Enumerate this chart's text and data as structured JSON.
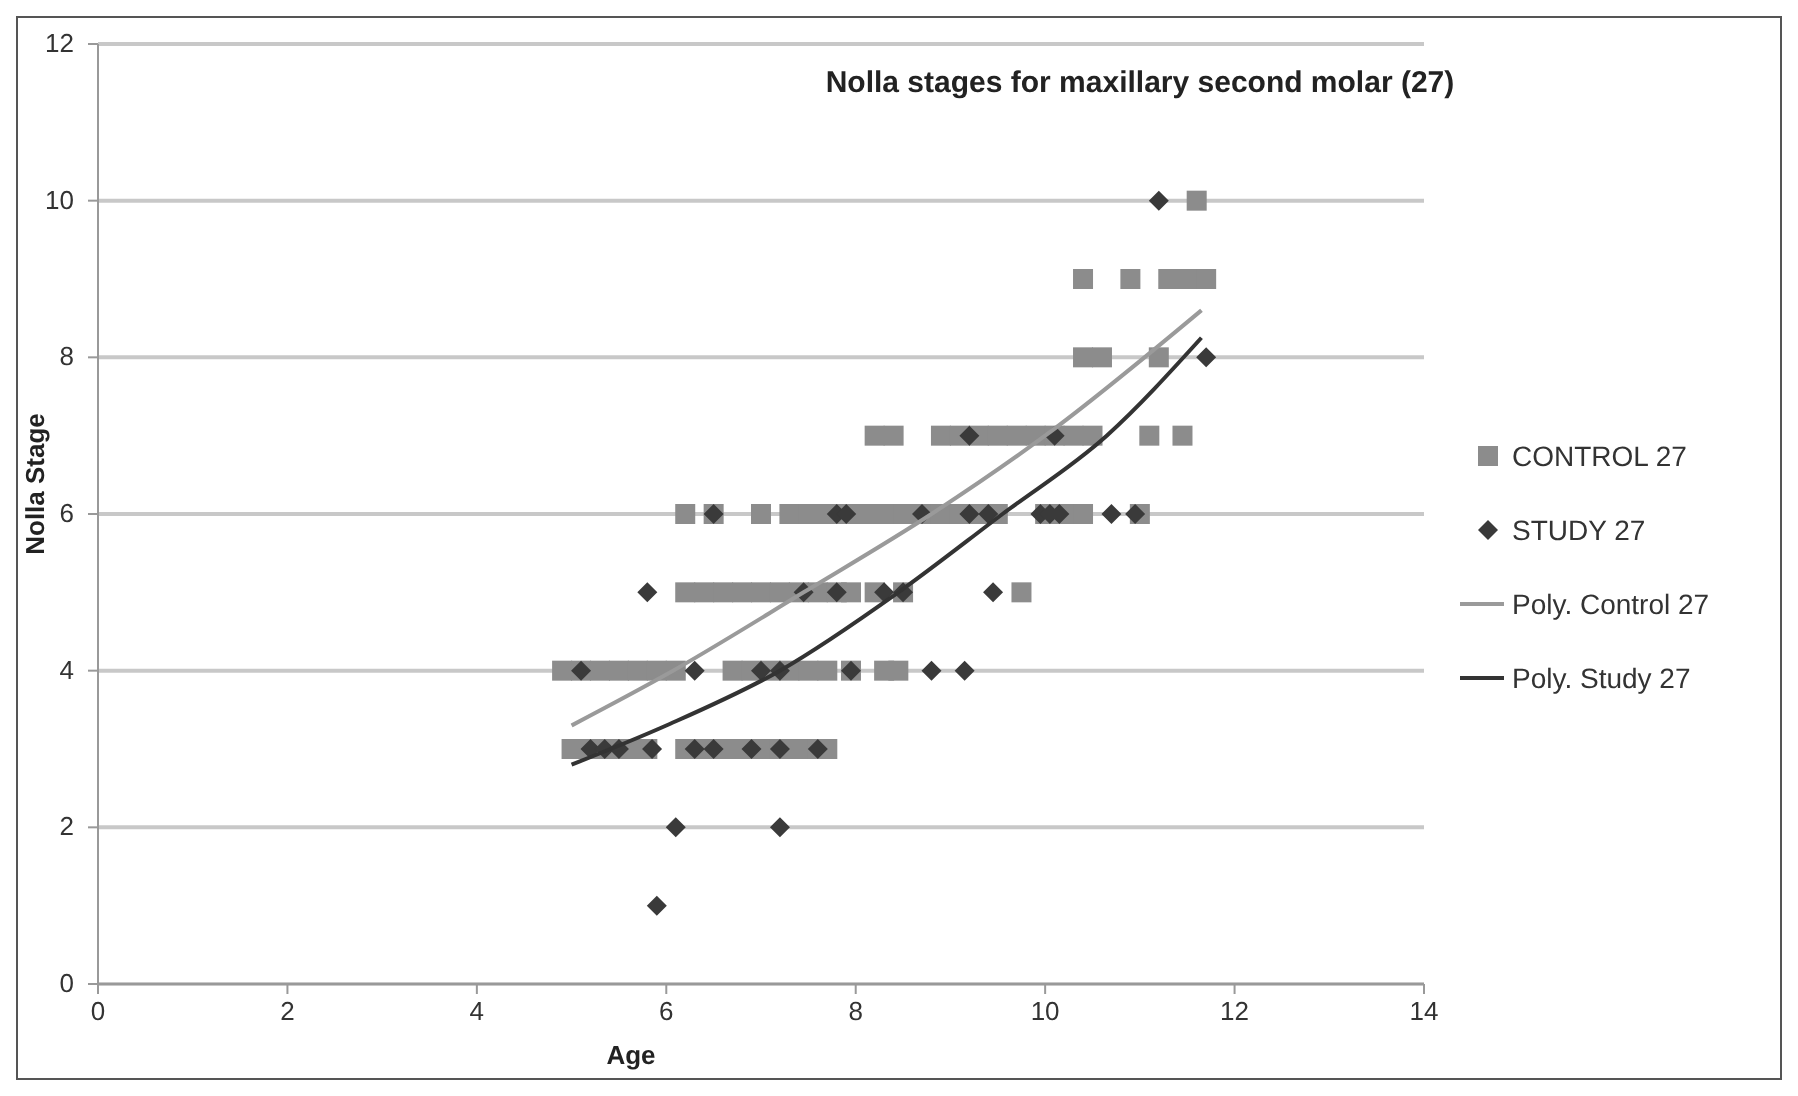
{
  "chart_data": {
    "type": "scatter",
    "title": "Nolla stages for maxillary second molar (27)",
    "xlabel": "Age",
    "ylabel": "Nolla Stage",
    "xlim": [
      0,
      14
    ],
    "xticks": [
      0,
      2,
      4,
      6,
      8,
      10,
      12,
      14
    ],
    "ylim": [
      0,
      12
    ],
    "yticks": [
      0,
      2,
      4,
      6,
      8,
      10,
      12
    ],
    "grid": "y",
    "legend": "right",
    "series": [
      {
        "name": "CONTROL 27",
        "color": "#8c8c8c",
        "marker": "square",
        "x": [
          5.0,
          5.2,
          5.4,
          5.6,
          5.8,
          6.2,
          6.4,
          6.6,
          6.8,
          7.0,
          7.2,
          7.4,
          7.6,
          7.7,
          4.9,
          5.1,
          5.3,
          5.5,
          5.7,
          5.9,
          6.1,
          6.7,
          6.9,
          7.1,
          7.3,
          7.5,
          7.7,
          7.95,
          8.3,
          8.45,
          6.2,
          6.4,
          6.6,
          6.8,
          7.0,
          7.2,
          7.4,
          7.6,
          7.8,
          7.95,
          8.2,
          8.5,
          9.75,
          6.2,
          6.5,
          7.0,
          7.3,
          7.5,
          7.7,
          7.9,
          8.1,
          8.3,
          8.5,
          8.7,
          8.9,
          9.1,
          9.3,
          9.5,
          10.0,
          10.2,
          10.4,
          11.0,
          8.2,
          8.4,
          8.9,
          9.1,
          9.3,
          9.5,
          9.7,
          9.9,
          10.1,
          10.3,
          10.5,
          11.1,
          11.45,
          10.4,
          10.6,
          11.2,
          10.4,
          10.9,
          11.3,
          11.5,
          11.7,
          11.6
        ],
        "values": [
          3,
          3,
          3,
          3,
          3,
          3,
          3,
          3,
          3,
          3,
          3,
          3,
          3,
          3,
          4,
          4,
          4,
          4,
          4,
          4,
          4,
          4,
          4,
          4,
          4,
          4,
          4,
          4,
          4,
          4,
          5,
          5,
          5,
          5,
          5,
          5,
          5,
          5,
          5,
          5,
          5,
          5,
          5,
          6,
          6,
          6,
          6,
          6,
          6,
          6,
          6,
          6,
          6,
          6,
          6,
          6,
          6,
          6,
          6,
          6,
          6,
          6,
          7,
          7,
          7,
          7,
          7,
          7,
          7,
          7,
          7,
          7,
          7,
          7,
          7,
          8,
          8,
          8,
          9,
          9,
          9,
          9,
          9,
          10
        ]
      },
      {
        "name": "STUDY 27",
        "color": "#3a3a3a",
        "marker": "diamond",
        "x": [
          5.9,
          6.1,
          7.2,
          5.2,
          5.35,
          5.5,
          5.85,
          6.3,
          6.5,
          6.9,
          7.2,
          7.6,
          5.1,
          6.3,
          7.0,
          7.2,
          7.95,
          8.8,
          9.15,
          5.8,
          7.45,
          7.8,
          8.3,
          8.5,
          9.45,
          6.5,
          7.8,
          7.9,
          8.7,
          9.2,
          9.4,
          9.95,
          10.05,
          10.15,
          10.7,
          10.95,
          9.2,
          10.1,
          11.7,
          11.2
        ],
        "values": [
          1,
          2,
          2,
          3,
          3,
          3,
          3,
          3,
          3,
          3,
          3,
          3,
          4,
          4,
          4,
          4,
          4,
          4,
          4,
          5,
          5,
          5,
          5,
          5,
          5,
          6,
          6,
          6,
          6,
          6,
          6,
          6,
          6,
          6,
          6,
          6,
          7,
          7,
          8,
          10
        ]
      },
      {
        "name": "Poly. Control 27",
        "type": "line",
        "color": "#9a9a9a",
        "marker": "none",
        "x": [
          5.0,
          6.0,
          7.45,
          8.8,
          10.0,
          11.65
        ],
        "values": [
          3.3,
          3.95,
          5,
          6,
          7,
          8.6
        ]
      },
      {
        "name": "Poly.  Study 27",
        "type": "line",
        "color": "#333333",
        "marker": "none",
        "x": [
          5.0,
          6.0,
          7.2,
          8.45,
          9.55,
          10.65,
          11.65
        ],
        "values": [
          2.8,
          3.3,
          4,
          5,
          6,
          7,
          8.25
        ]
      }
    ]
  }
}
